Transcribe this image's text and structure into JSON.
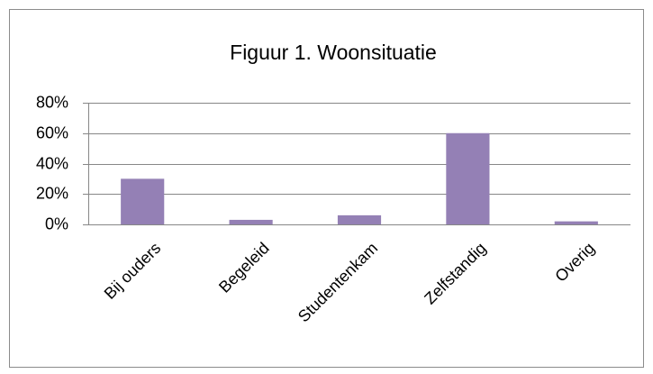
{
  "chart_data": {
    "type": "bar",
    "title": "Figuur 1. Woonsituatie",
    "categories": [
      "Bij ouders",
      "Begeleid",
      "Studentenkam",
      "Zelfstandig",
      "Overig"
    ],
    "values": [
      30,
      3,
      6,
      60,
      2
    ],
    "color": "#9480b5",
    "ylim": [
      0,
      80
    ],
    "yticks": [
      {
        "value": 0,
        "label": "0%"
      },
      {
        "value": 20,
        "label": "20%"
      },
      {
        "value": 40,
        "label": "40%"
      },
      {
        "value": 60,
        "label": "60%"
      },
      {
        "value": 80,
        "label": "80%"
      }
    ],
    "grid": true
  }
}
